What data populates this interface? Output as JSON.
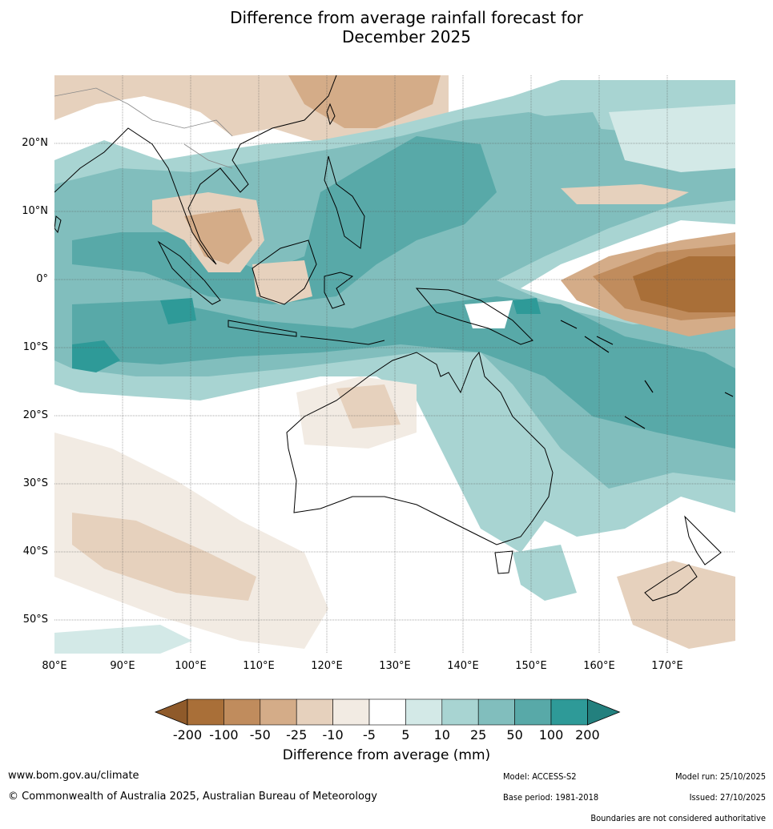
{
  "title_line1": "Difference from average rainfall forecast for",
  "title_line2": "December 2025",
  "lat_labels": [
    "20°N",
    "10°N",
    "0°",
    "10°S",
    "20°S",
    "30°S",
    "40°S",
    "50°S"
  ],
  "lon_labels": [
    "80°E",
    "90°E",
    "100°E",
    "110°E",
    "120°E",
    "130°E",
    "140°E",
    "150°E",
    "160°E",
    "170°E"
  ],
  "legend": {
    "ticks": [
      "-200",
      "-100",
      "-50",
      "-25",
      "-10",
      "-5",
      "5",
      "10",
      "25",
      "50",
      "100",
      "200"
    ],
    "colors": [
      "#a96f38",
      "#c08c5d",
      "#d4ac88",
      "#e6d1bd",
      "#f2ebe3",
      "#ffffff",
      "#d3e9e7",
      "#a8d4d2",
      "#81bebd",
      "#58a9a8",
      "#2e9a98"
    ],
    "under_color": "#8f5a2a",
    "over_color": "#23807e",
    "title": "Difference from average (mm)"
  },
  "footer": {
    "url": "www.bom.gov.au/climate",
    "copyright": "© Commonwealth of Australia 2025, Australian Bureau of Meteorology",
    "model": "Model: ACCESS-S2",
    "base_period": "Base period: 1981-2018",
    "model_run": "Model run: 25/10/2025",
    "issued": "Issued: 27/10/2025",
    "disclaimer": "Boundaries are not considered authoritative"
  }
}
